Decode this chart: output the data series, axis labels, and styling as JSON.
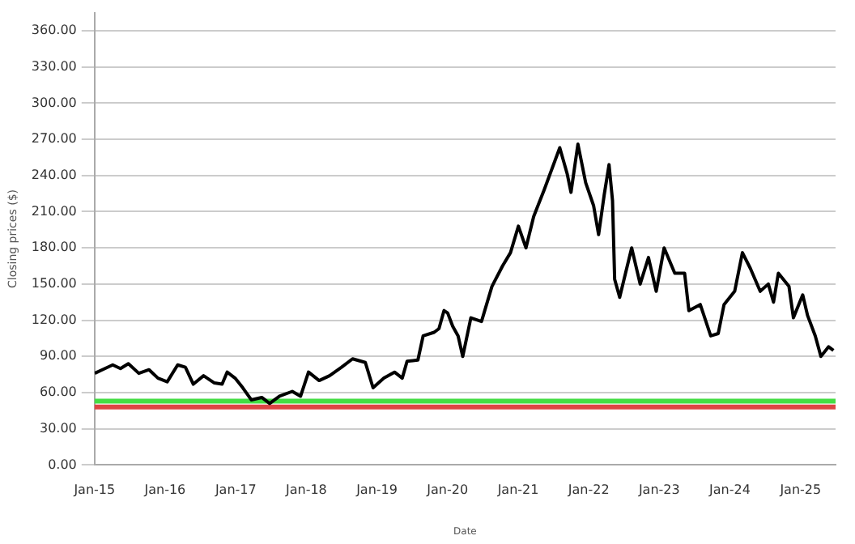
{
  "chart_data": {
    "type": "line",
    "xlabel": "Date",
    "ylabel": "Closing prices ($)",
    "x": [
      "2015-01-02",
      "2015-02-10",
      "2015-04-05",
      "2015-05-15",
      "2015-06-25",
      "2015-08-18",
      "2015-10-10",
      "2015-11-25",
      "2016-01-12",
      "2016-03-06",
      "2016-04-15",
      "2016-05-26",
      "2016-07-18",
      "2016-09-12",
      "2016-10-22",
      "2016-11-17",
      "2016-12-28",
      "2017-02-06",
      "2017-03-22",
      "2017-05-15",
      "2017-06-25",
      "2017-08-15",
      "2017-10-20",
      "2017-12-02",
      "2018-01-12",
      "2018-03-08",
      "2018-05-01",
      "2018-07-02",
      "2018-08-28",
      "2018-11-02",
      "2018-12-12",
      "2019-02-06",
      "2019-04-02",
      "2019-05-12",
      "2019-06-06",
      "2019-08-01",
      "2019-08-28",
      "2019-10-24",
      "2019-11-18",
      "2019-12-14",
      "2020-01-02",
      "2020-01-28",
      "2020-02-25",
      "2020-03-20",
      "2020-05-01",
      "2020-06-25",
      "2020-08-18",
      "2020-10-12",
      "2020-11-22",
      "2021-01-02",
      "2021-02-10",
      "2021-03-22",
      "2021-05-15",
      "2021-08-04",
      "2021-09-12",
      "2021-10-01",
      "2021-11-06",
      "2021-12-16",
      "2022-01-26",
      "2022-02-21",
      "2022-03-22",
      "2022-04-16",
      "2022-05-04",
      "2022-05-15",
      "2022-06-10",
      "2022-08-11",
      "2022-09-24",
      "2022-11-06",
      "2022-12-16",
      "2023-01-26",
      "2023-03-22",
      "2023-05-12",
      "2023-06-03",
      "2023-08-01",
      "2023-09-24",
      "2023-11-02",
      "2023-12-02",
      "2024-01-26",
      "2024-03-06",
      "2024-04-16",
      "2024-06-06",
      "2024-07-18",
      "2024-08-14",
      "2024-09-08",
      "2024-11-02",
      "2024-11-25",
      "2025-01-12",
      "2025-02-06",
      "2025-03-18",
      "2025-04-16",
      "2025-05-26",
      "2025-06-20"
    ],
    "series": [
      {
        "color": "#000000",
        "values": [
          76,
          79,
          83,
          80,
          84,
          76,
          79,
          72,
          69,
          83,
          81,
          67,
          74,
          68,
          67,
          77,
          72,
          64,
          54,
          56,
          51,
          57,
          61,
          57,
          77,
          70,
          74,
          81,
          88,
          85,
          64,
          72,
          77,
          72,
          86,
          87,
          107,
          110,
          113,
          128,
          126,
          115,
          107,
          90,
          122,
          119,
          148,
          165,
          176,
          198,
          180,
          206,
          228,
          263,
          241,
          226,
          266,
          234,
          215,
          191,
          224,
          249,
          219,
          154,
          139,
          180,
          150,
          172,
          144,
          180,
          159,
          159,
          128,
          133,
          107,
          109,
          133,
          144,
          176,
          163,
          144,
          150,
          135,
          159,
          148,
          122,
          141,
          124,
          107,
          90,
          98,
          95
        ]
      }
    ],
    "xlim": [
      "2015-01-01",
      "2025-07-01"
    ],
    "xticks": [
      {
        "value": "2015-01-01",
        "label": "Jan-15"
      },
      {
        "value": "2016-01-01",
        "label": "Jan-16"
      },
      {
        "value": "2017-01-01",
        "label": "Jan-17"
      },
      {
        "value": "2018-01-01",
        "label": "Jan-18"
      },
      {
        "value": "2019-01-01",
        "label": "Jan-19"
      },
      {
        "value": "2020-01-01",
        "label": "Jan-20"
      },
      {
        "value": "2021-01-01",
        "label": "Jan-21"
      },
      {
        "value": "2022-01-01",
        "label": "Jan-22"
      },
      {
        "value": "2023-01-01",
        "label": "Jan-23"
      },
      {
        "value": "2024-01-01",
        "label": "Jan-24"
      },
      {
        "value": "2025-01-01",
        "label": "Jan-25"
      }
    ],
    "ylim": [
      0,
      375
    ],
    "yticks": [
      {
        "value": 0,
        "label": "0.00"
      },
      {
        "value": 30,
        "label": "30.00"
      },
      {
        "value": 60,
        "label": "60.00"
      },
      {
        "value": 90,
        "label": "90.00"
      },
      {
        "value": 120,
        "label": "120.00"
      },
      {
        "value": 150,
        "label": "150.00"
      },
      {
        "value": 180,
        "label": "180.00"
      },
      {
        "value": 210,
        "label": "210.00"
      },
      {
        "value": 240,
        "label": "240.00"
      },
      {
        "value": 270,
        "label": "270.00"
      },
      {
        "value": 300,
        "label": "300.00"
      },
      {
        "value": 330,
        "label": "330.00"
      },
      {
        "value": 360,
        "label": "360.00"
      }
    ],
    "ref_lines": [
      {
        "axis": "y",
        "value": 53,
        "color": "#44dd44"
      },
      {
        "axis": "y",
        "value": 48,
        "color": "#dd4444"
      }
    ],
    "grid": "y",
    "legend": false,
    "marker": "none",
    "line_style": "solid"
  }
}
